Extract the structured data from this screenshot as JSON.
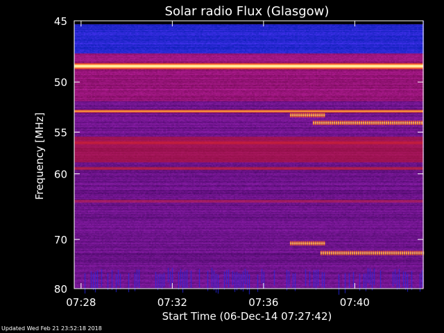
{
  "chart_data": {
    "type": "heatmap",
    "title": "Solar radio Flux (Glasgow)",
    "xlabel": "Start Time (06-Dec-14 07:27:42)",
    "ylabel": "Frequency [MHz]",
    "x_start": "07:27:42",
    "x_end": "07:43:00",
    "x_ticks": [
      "07:28",
      "07:32",
      "07:36",
      "07:40"
    ],
    "x_tick_minutes": [
      28,
      32,
      36,
      40
    ],
    "ylim": [
      45,
      80
    ],
    "y_scale": "reciprocal",
    "y_ticks": [
      45,
      50,
      55,
      60,
      70,
      80
    ],
    "emission_lanes_mhz": [
      {
        "freq": 48.6,
        "intensity": 1.0
      },
      {
        "freq": 52.8,
        "intensity": 0.85
      },
      {
        "freq": 59.3,
        "intensity": 0.55
      },
      {
        "freq": 56.2,
        "intensity": 0.45
      },
      {
        "freq": 63.8,
        "intensity": 0.4
      }
    ],
    "burst_features": [
      {
        "t_start": "07:37:10",
        "t_end": "07:38:40",
        "freq": 53.2
      },
      {
        "t_start": "07:38:10",
        "t_end": "07:43:00",
        "freq": 54.0
      },
      {
        "t_start": "07:37:10",
        "t_end": "07:38:40",
        "freq": 70.7
      },
      {
        "t_start": "07:38:30",
        "t_end": "07:43:00",
        "freq": 72.5
      }
    ],
    "colors": {
      "background": "#000000",
      "low": "#1a1aa0",
      "mid": "#c01010",
      "high": "#fff0a0"
    }
  },
  "footer": {
    "updated": "Updated Wed Feb 21 23:52:18 2018"
  }
}
